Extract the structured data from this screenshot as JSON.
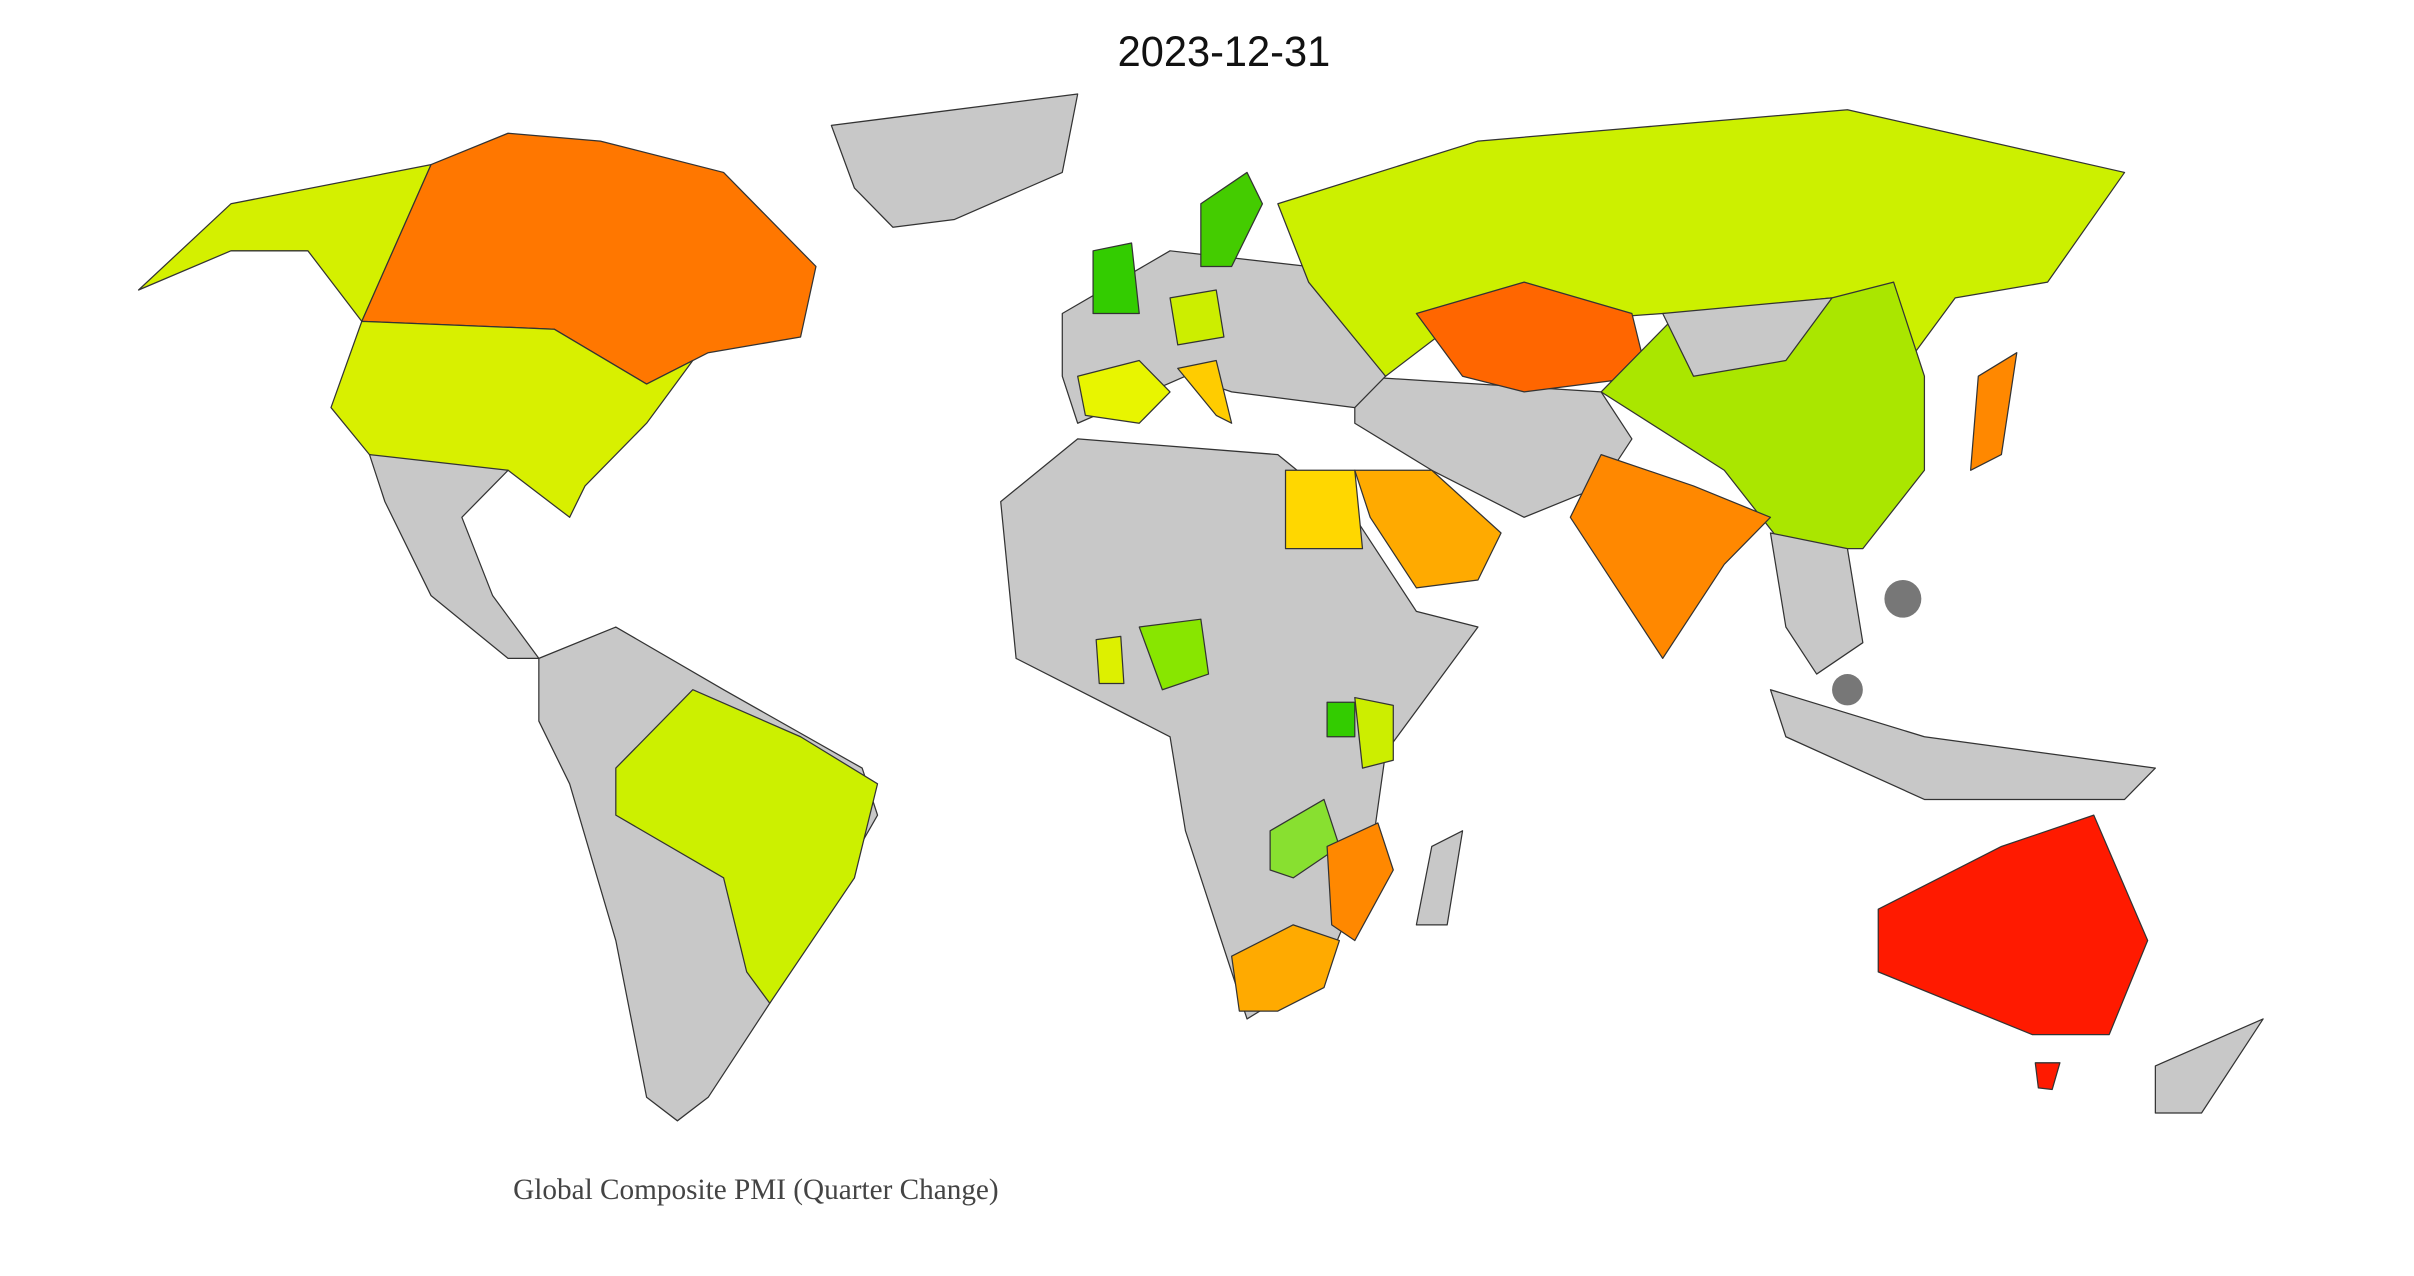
{
  "title": "2023-12-31",
  "caption": "Global Composite PMI (Quarter Change)"
}
